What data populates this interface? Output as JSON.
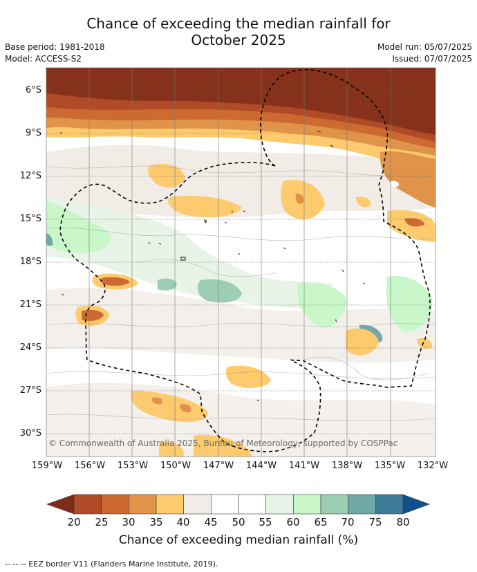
{
  "title_line1": "Chance of exceeding the median rainfall for",
  "title_line2": "October 2025",
  "base_period": "Base period: 1981-2018",
  "model": "Model: ACCESS-S2",
  "model_run": "Model run: 05/07/2025",
  "issued": "Issued: 07/07/2025",
  "copyright": "© Commonwealth of Australia 2025, Bureau of Meteorology, supported by COSPPac",
  "lat_labels": [
    "6°S",
    "9°S",
    "12°S",
    "15°S",
    "18°S",
    "21°S",
    "24°S",
    "27°S",
    "30°S"
  ],
  "lon_labels": [
    "159°W",
    "156°W",
    "153°W",
    "150°W",
    "147°W",
    "144°W",
    "141°W",
    "138°W",
    "135°W",
    "132°W"
  ],
  "colorbar": {
    "ticks": [
      "20",
      "25",
      "30",
      "35",
      "40",
      "45",
      "50",
      "55",
      "60",
      "65",
      "70",
      "75",
      "80"
    ],
    "colors": [
      "#7f2d1a",
      "#b04a27",
      "#cc6a32",
      "#e0944a",
      "#fdca6d",
      "#f1ece6",
      "#ffffff",
      "#ffffff",
      "#e8f4e8",
      "#c9f7c9",
      "#9ecdb6",
      "#6fa8a6",
      "#3e7c99",
      "#114f8a"
    ],
    "title": "Chance of exceeding median rainfall (%)"
  },
  "footnote": "-- -- -- EEZ border V11 (Flanders Marine Institute, 2019)."
}
